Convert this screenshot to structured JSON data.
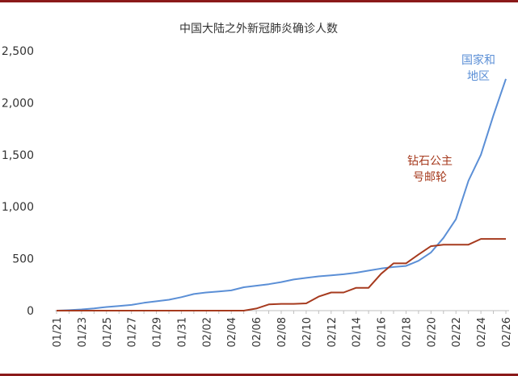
{
  "chart_data": {
    "type": "line",
    "title": "中国大陆之外新冠肺炎确诊人数",
    "xlabel": "",
    "ylabel": "",
    "ylim": [
      0,
      2500
    ],
    "yticks": [
      0,
      500,
      1000,
      1500,
      2000,
      2500
    ],
    "ytick_labels": [
      "0",
      "500",
      "1,000",
      "1,500",
      "2,000",
      "2,500"
    ],
    "categories": [
      "01/21",
      "01/22",
      "01/23",
      "01/24",
      "01/25",
      "01/26",
      "01/27",
      "01/28",
      "01/29",
      "01/30",
      "01/31",
      "02/01",
      "02/02",
      "02/03",
      "02/04",
      "02/05",
      "02/06",
      "02/07",
      "02/08",
      "02/09",
      "02/10",
      "02/11",
      "02/12",
      "02/13",
      "02/14",
      "02/15",
      "02/16",
      "02/17",
      "02/18",
      "02/19",
      "02/20",
      "02/21",
      "02/22",
      "02/23",
      "02/24",
      "02/25",
      "02/26"
    ],
    "xtick_labels": [
      "01/21",
      "01/23",
      "01/25",
      "01/27",
      "01/29",
      "01/31",
      "02/02",
      "02/04",
      "02/06",
      "02/08",
      "02/10",
      "02/12",
      "02/14",
      "02/16",
      "02/18",
      "02/20",
      "02/22",
      "02/24",
      "02/26"
    ],
    "grid": false,
    "legend": "none",
    "series": [
      {
        "name": "国家和地区",
        "label_lines": [
          "国家和",
          "地区"
        ],
        "color": "#5b8fd6",
        "values": [
          0,
          5,
          12,
          22,
          35,
          45,
          55,
          75,
          90,
          105,
          130,
          160,
          175,
          185,
          195,
          225,
          240,
          255,
          275,
          300,
          315,
          330,
          340,
          350,
          365,
          385,
          405,
          420,
          430,
          480,
          560,
          700,
          880,
          1250,
          1500,
          1880,
          2230
        ]
      },
      {
        "name": "钻石公主号邮轮",
        "label_lines": [
          "钻石公主",
          "号邮轮"
        ],
        "color": "#a63a1e",
        "values": [
          0,
          0,
          0,
          0,
          0,
          0,
          0,
          0,
          0,
          0,
          0,
          0,
          0,
          0,
          0,
          0,
          20,
          60,
          65,
          65,
          70,
          135,
          175,
          175,
          220,
          220,
          355,
          455,
          455,
          540,
          620,
          635,
          635,
          635,
          690,
          690,
          690
        ]
      }
    ]
  }
}
